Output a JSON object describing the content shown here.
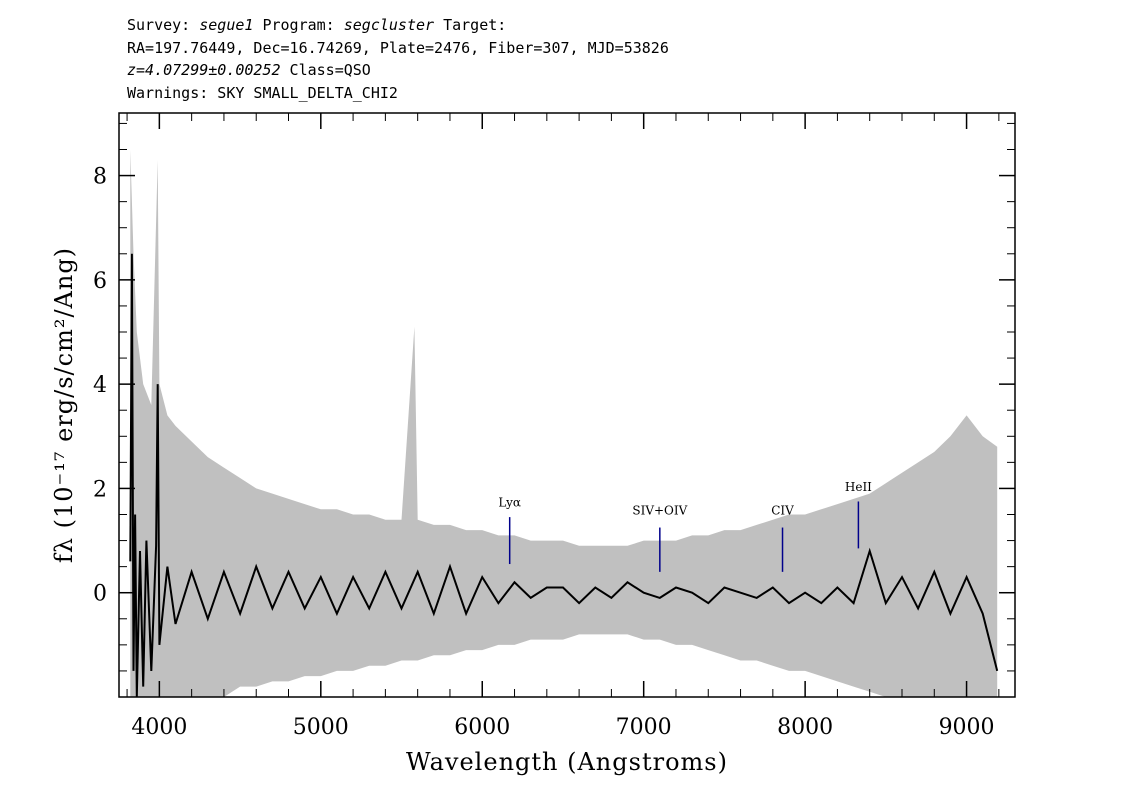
{
  "header": {
    "survey_key": "Survey: ",
    "survey": "segue1",
    "program_key": " Program: ",
    "program": "segcluster",
    "target_key": " Target:",
    "line2": "RA=197.76449, Dec=16.74269, Plate=2476, Fiber=307, MJD=53826",
    "redshift": "z=4.07299±0.00252",
    "class_text": " Class=QSO",
    "warnings": "Warnings: SKY SMALL_DELTA_CHI2"
  },
  "chart_data": {
    "type": "line",
    "xlabel": "Wavelength (Angstroms)",
    "ylabel": "fλ (10⁻¹⁷ erg/s/cm²/Ang)",
    "xlim": [
      3750,
      9300
    ],
    "ylim": [
      -2.0,
      9.2
    ],
    "x_ticks": [
      4000,
      5000,
      6000,
      7000,
      8000,
      9000
    ],
    "y_ticks": [
      0,
      2,
      4,
      6,
      8
    ],
    "grid": false,
    "series": [
      {
        "name": "",
        "color": "#c0c0c0",
        "x": [
          3820,
          3840,
          3860,
          3880,
          3900,
          3950,
          3990,
          4000,
          4050,
          4100,
          4200,
          4300,
          4400,
          4500,
          4600,
          4700,
          4800,
          4900,
          5000,
          5100,
          5200,
          5300,
          5400,
          5500,
          5580,
          5600,
          5700,
          5800,
          5900,
          6000,
          6100,
          6200,
          6300,
          6400,
          6500,
          6600,
          6700,
          6800,
          6900,
          7000,
          7100,
          7200,
          7300,
          7400,
          7500,
          7600,
          7700,
          7800,
          7900,
          8000,
          8100,
          8200,
          8300,
          8400,
          8500,
          8600,
          8700,
          8800,
          8900,
          9000,
          9100,
          9190
        ],
        "y_high": [
          8.5,
          6.5,
          5.0,
          4.5,
          4.0,
          3.6,
          8.3,
          4.0,
          3.4,
          3.2,
          2.9,
          2.6,
          2.4,
          2.2,
          2.0,
          1.9,
          1.8,
          1.7,
          1.6,
          1.6,
          1.5,
          1.5,
          1.4,
          1.4,
          5.1,
          1.4,
          1.3,
          1.3,
          1.2,
          1.2,
          1.1,
          1.1,
          1.0,
          1.0,
          1.0,
          0.9,
          0.9,
          0.9,
          0.9,
          1.0,
          1.0,
          1.0,
          1.1,
          1.1,
          1.2,
          1.2,
          1.3,
          1.4,
          1.5,
          1.5,
          1.6,
          1.7,
          1.8,
          1.9,
          2.1,
          2.3,
          2.5,
          2.7,
          3.0,
          3.4,
          3.0,
          2.8
        ],
        "y_low": [
          -2.0,
          -2.0,
          -2.0,
          -2.0,
          -2.0,
          -2.0,
          -2.0,
          -2.0,
          -2.0,
          -2.0,
          -2.0,
          -2.0,
          -2.0,
          -1.8,
          -1.8,
          -1.7,
          -1.7,
          -1.6,
          -1.6,
          -1.5,
          -1.5,
          -1.4,
          -1.4,
          -1.3,
          -1.3,
          -1.3,
          -1.2,
          -1.2,
          -1.1,
          -1.1,
          -1.0,
          -1.0,
          -0.9,
          -0.9,
          -0.9,
          -0.8,
          -0.8,
          -0.8,
          -0.8,
          -0.9,
          -0.9,
          -1.0,
          -1.0,
          -1.1,
          -1.2,
          -1.3,
          -1.3,
          -1.4,
          -1.5,
          -1.5,
          -1.6,
          -1.7,
          -1.8,
          -1.9,
          -2.0,
          -2.0,
          -2.0,
          -2.0,
          -2.0,
          -2.0,
          -2.0,
          -2.0
        ]
      },
      {
        "name": "",
        "color": "#000000",
        "x": [
          3820,
          3830,
          3840,
          3850,
          3860,
          3880,
          3900,
          3920,
          3950,
          3980,
          3990,
          4000,
          4050,
          4100,
          4200,
          4300,
          4400,
          4500,
          4600,
          4700,
          4800,
          4900,
          5000,
          5100,
          5200,
          5300,
          5400,
          5500,
          5600,
          5700,
          5800,
          5900,
          6000,
          6100,
          6200,
          6300,
          6400,
          6500,
          6600,
          6700,
          6800,
          6900,
          7000,
          7100,
          7200,
          7300,
          7400,
          7500,
          7600,
          7700,
          7800,
          7900,
          8000,
          8100,
          8200,
          8300,
          8400,
          8500,
          8600,
          8700,
          8800,
          8900,
          9000,
          9100,
          9190
        ],
        "y": [
          0.6,
          6.5,
          -1.5,
          1.5,
          -2.0,
          0.8,
          -1.8,
          1.0,
          -1.5,
          0.9,
          4.0,
          -1.0,
          0.5,
          -0.6,
          0.4,
          -0.5,
          0.4,
          -0.4,
          0.5,
          -0.3,
          0.4,
          -0.3,
          0.3,
          -0.4,
          0.3,
          -0.3,
          0.4,
          -0.3,
          0.4,
          -0.4,
          0.5,
          -0.4,
          0.3,
          -0.2,
          0.2,
          -0.1,
          0.1,
          0.1,
          -0.2,
          0.1,
          -0.1,
          0.2,
          0.0,
          -0.1,
          0.1,
          0.0,
          -0.2,
          0.1,
          0.0,
          -0.1,
          0.1,
          -0.2,
          0.0,
          -0.2,
          0.1,
          -0.2,
          0.8,
          -0.2,
          0.3,
          -0.3,
          0.4,
          -0.4,
          0.3,
          -0.4,
          -1.5
        ]
      }
    ],
    "annotations": [
      {
        "label": "Lyα",
        "x": 6170,
        "y_top": 1.45,
        "y_bottom": 0.55,
        "label_y": 1.65,
        "color": "#00008b"
      },
      {
        "label": "SIV+OIV",
        "x": 7100,
        "y_top": 1.25,
        "y_bottom": 0.4,
        "label_y": 1.5,
        "color": "#00008b"
      },
      {
        "label": "CIV",
        "x": 7860,
        "y_top": 1.25,
        "y_bottom": 0.4,
        "label_y": 1.5,
        "color": "#00008b"
      },
      {
        "label": "HeII",
        "x": 8330,
        "y_top": 1.75,
        "y_bottom": 0.85,
        "label_y": 1.95,
        "color": "#00008b"
      }
    ]
  }
}
